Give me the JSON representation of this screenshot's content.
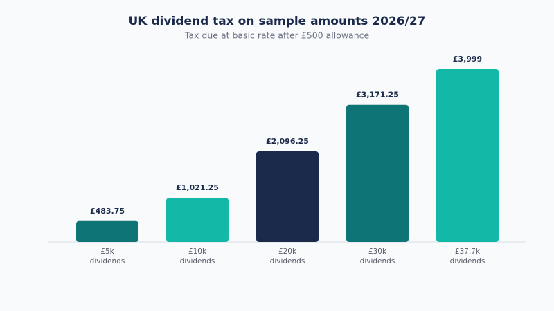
{
  "chart_data": {
    "type": "bar",
    "title": "UK dividend tax on sample amounts 2026/27",
    "subtitle": "Tax due at basic rate after £500 allowance",
    "categories": [
      "£5k dividends",
      "£10k dividends",
      "£20k dividends",
      "£30k dividends",
      "£37.7k dividends"
    ],
    "values": [
      483.75,
      1021.25,
      2096.25,
      3171.25,
      3999
    ],
    "value_labels": [
      "£483.75",
      "£1,021.25",
      "£2,096.25",
      "£3,171.25",
      "£3,999"
    ],
    "colors": [
      "#0e7475",
      "#14b8a6",
      "#1b2a4a",
      "#0e7475",
      "#14b8a6"
    ]
  }
}
